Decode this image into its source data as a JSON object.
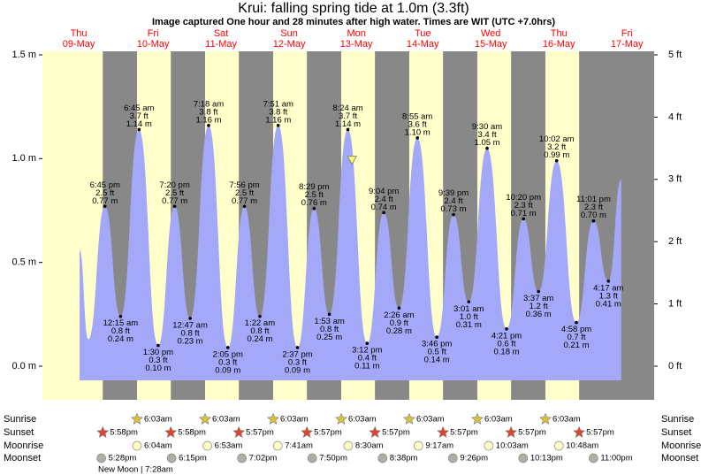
{
  "chart_data": {
    "type": "tide",
    "title": "Krui: falling  spring tide at 1.0m (3.3ft)",
    "subtitle": "Image captured One hour and 28 minutes after high water. Times are WIT (UTC +7.0hrs)",
    "xlim": [
      -3.3,
      212.4
    ],
    "ylim": [
      -0.162,
      1.517
    ],
    "yticks": [
      {
        "value": 0,
        "label": "0.0 m"
      },
      {
        "value": 0.5,
        "label": "0.5 m"
      },
      {
        "value": 1,
        "label": "1.0 m"
      },
      {
        "value": 1.5,
        "label": "1.5 m"
      }
    ],
    "y2lim": [
      -0.54,
      5.057
    ],
    "y2ticks": [
      {
        "value": 0,
        "label": "0 ft"
      },
      {
        "value": 1,
        "label": "1 ft"
      },
      {
        "value": 2,
        "label": "2 ft"
      },
      {
        "value": 3,
        "label": "3 ft"
      },
      {
        "value": 4,
        "label": "4 ft"
      },
      {
        "value": 5,
        "label": "5 ft"
      }
    ],
    "days": [
      {
        "x": 9.5,
        "weekday": "Thu",
        "date": "09-May"
      },
      {
        "x": 35.7,
        "weekday": "Fri",
        "date": "10-May"
      },
      {
        "x": 59.7,
        "weekday": "Sat",
        "date": "11-May"
      },
      {
        "x": 83.7,
        "weekday": "Sun",
        "date": "12-May"
      },
      {
        "x": 107.4,
        "weekday": "Mon",
        "date": "13-May"
      },
      {
        "x": 130.8,
        "weekday": "Tue",
        "date": "14-May"
      },
      {
        "x": 154.8,
        "weekday": "Wed",
        "date": "15-May"
      },
      {
        "x": 178.8,
        "weekday": "Thu",
        "date": "16-May"
      },
      {
        "x": 202.8,
        "weekday": "Fri",
        "date": "17-May"
      }
    ],
    "day_color": "#ff0000",
    "background": "#ffffcc",
    "night_color": "#888888",
    "tide": {
      "color": "#a3a8f8",
      "x": [
        9.8,
        12.9,
        18.75,
        24.25,
        30.75,
        37.5,
        43.33,
        48.78,
        55.3,
        62.08,
        67.93,
        73.37,
        79.85,
        86.62,
        92.48,
        97.88,
        104.4,
        111.2,
        117.07,
        122.43,
        128.92,
        135.77,
        141.65,
        147.02,
        153.5,
        160.35,
        166.33,
        171.62,
        178.03,
        184.97,
        191.02,
        196.28,
        200.8
      ],
      "values": [
        0.56,
        0.13,
        0.77,
        0.24,
        1.14,
        0.1,
        0.77,
        0.23,
        1.16,
        0.09,
        0.77,
        0.24,
        1.16,
        0.09,
        0.76,
        0.25,
        1.14,
        0.11,
        0.74,
        0.28,
        1.1,
        0.14,
        0.73,
        0.31,
        1.05,
        0.18,
        0.71,
        0.36,
        0.99,
        0.21,
        0.7,
        0.41,
        0.9
      ],
      "value_labels": [
        null,
        null,
        "0.77 m",
        "0.24 m",
        "1.14 m",
        "0.10 m",
        "0.77 m",
        "0.23 m",
        "1.16 m",
        "0.09 m",
        "0.77 m",
        "0.24 m",
        "1.16 m",
        "0.09 m",
        "0.76 m",
        "0.25 m",
        "1.14 m",
        "0.11 m",
        "0.74 m",
        "0.28 m",
        "1.10 m",
        "0.14 m",
        "0.73 m",
        "0.31 m",
        "1.05 m",
        "0.18 m",
        "0.71 m",
        "0.36 m",
        "0.99 m",
        "0.21 m",
        "0.70 m",
        "0.41 m",
        null
      ],
      "ft_labels": [
        null,
        null,
        "2.5 ft",
        "0.8 ft",
        "3.7 ft",
        "0.3 ft",
        "2.5 ft",
        "0.8 ft",
        "3.8 ft",
        "0.3 ft",
        "2.5 ft",
        "0.8 ft",
        "3.8 ft",
        "0.3 ft",
        "2.5 ft",
        "0.8 ft",
        "3.7 ft",
        "0.4 ft",
        "2.4 ft",
        "0.9 ft",
        "3.6 ft",
        "0.5 ft",
        "2.4 ft",
        "1.0 ft",
        "3.4 ft",
        "0.6 ft",
        "2.3 ft",
        "1.2 ft",
        "3.2 ft",
        "0.7 ft",
        "2.3 ft",
        "1.3 ft",
        null
      ],
      "time_labels": [
        null,
        null,
        "6:45 pm",
        "12:15 am",
        "6:45 am",
        "1:30 pm",
        "7:20 pm",
        "12:47 am",
        "7:18 am",
        "2:05 pm",
        "7:56 pm",
        "1:22 am",
        "7:51 am",
        "2:37 pm",
        "8:29 pm",
        "1:53 am",
        "8:24 am",
        "3:12 pm",
        "9:04 pm",
        "2:26 am",
        "8:55 am",
        "3:46 pm",
        "9:39 pm",
        "3:01 am",
        "9:30 am",
        "4:21 pm",
        "10:20 pm",
        "3:37 am",
        "10:02 am",
        "4:58 pm",
        "11:01 pm",
        "4:17 am",
        null
      ]
    },
    "now": {
      "x": 105.87,
      "value": 0.99,
      "color": "#ffff66"
    },
    "rows": [
      {
        "name": "Sunrise",
        "icon": "star",
        "color": "#d6c43c",
        "x": [
          30.05,
          54.05,
          78.05,
          102.05,
          126.05,
          150.05,
          174.05
        ],
        "labels": [
          "6:03am",
          "6:03am",
          "6:03am",
          "6:03am",
          "6:03am",
          "6:03am",
          "6:03am"
        ]
      },
      {
        "name": "Sunset",
        "icon": "star",
        "color": "#e0442c",
        "x": [
          17.967,
          41.967,
          65.95,
          89.95,
          113.95,
          137.95,
          161.95,
          185.95
        ],
        "labels": [
          "5:58pm",
          "5:58pm",
          "5:57pm",
          "5:57pm",
          "5:57pm",
          "5:57pm",
          "5:57pm",
          "5:57pm"
        ]
      },
      {
        "name": "Moonrise",
        "icon": "circle",
        "color": "#ffffc4",
        "x": [
          30.067,
          54.883,
          79.683,
          104.5,
          129.283,
          154.05,
          178.8
        ],
        "labels": [
          "6:04am",
          "6:53am",
          "7:41am",
          "8:30am",
          "9:17am",
          "10:03am",
          "10:48am"
        ]
      },
      {
        "name": "Moonset",
        "icon": "circle",
        "color": "#b0aea4",
        "x": [
          17.467,
          42.25,
          67.033,
          91.833,
          116.633,
          141.433,
          166.217,
          191.0
        ],
        "labels": [
          "5:28pm",
          "6:15pm",
          "7:02pm",
          "7:50pm",
          "8:38pm",
          "9:26pm",
          "10:13pm",
          "11:00pm"
        ]
      }
    ],
    "moon_phase": "New Moon | 7:28am"
  }
}
